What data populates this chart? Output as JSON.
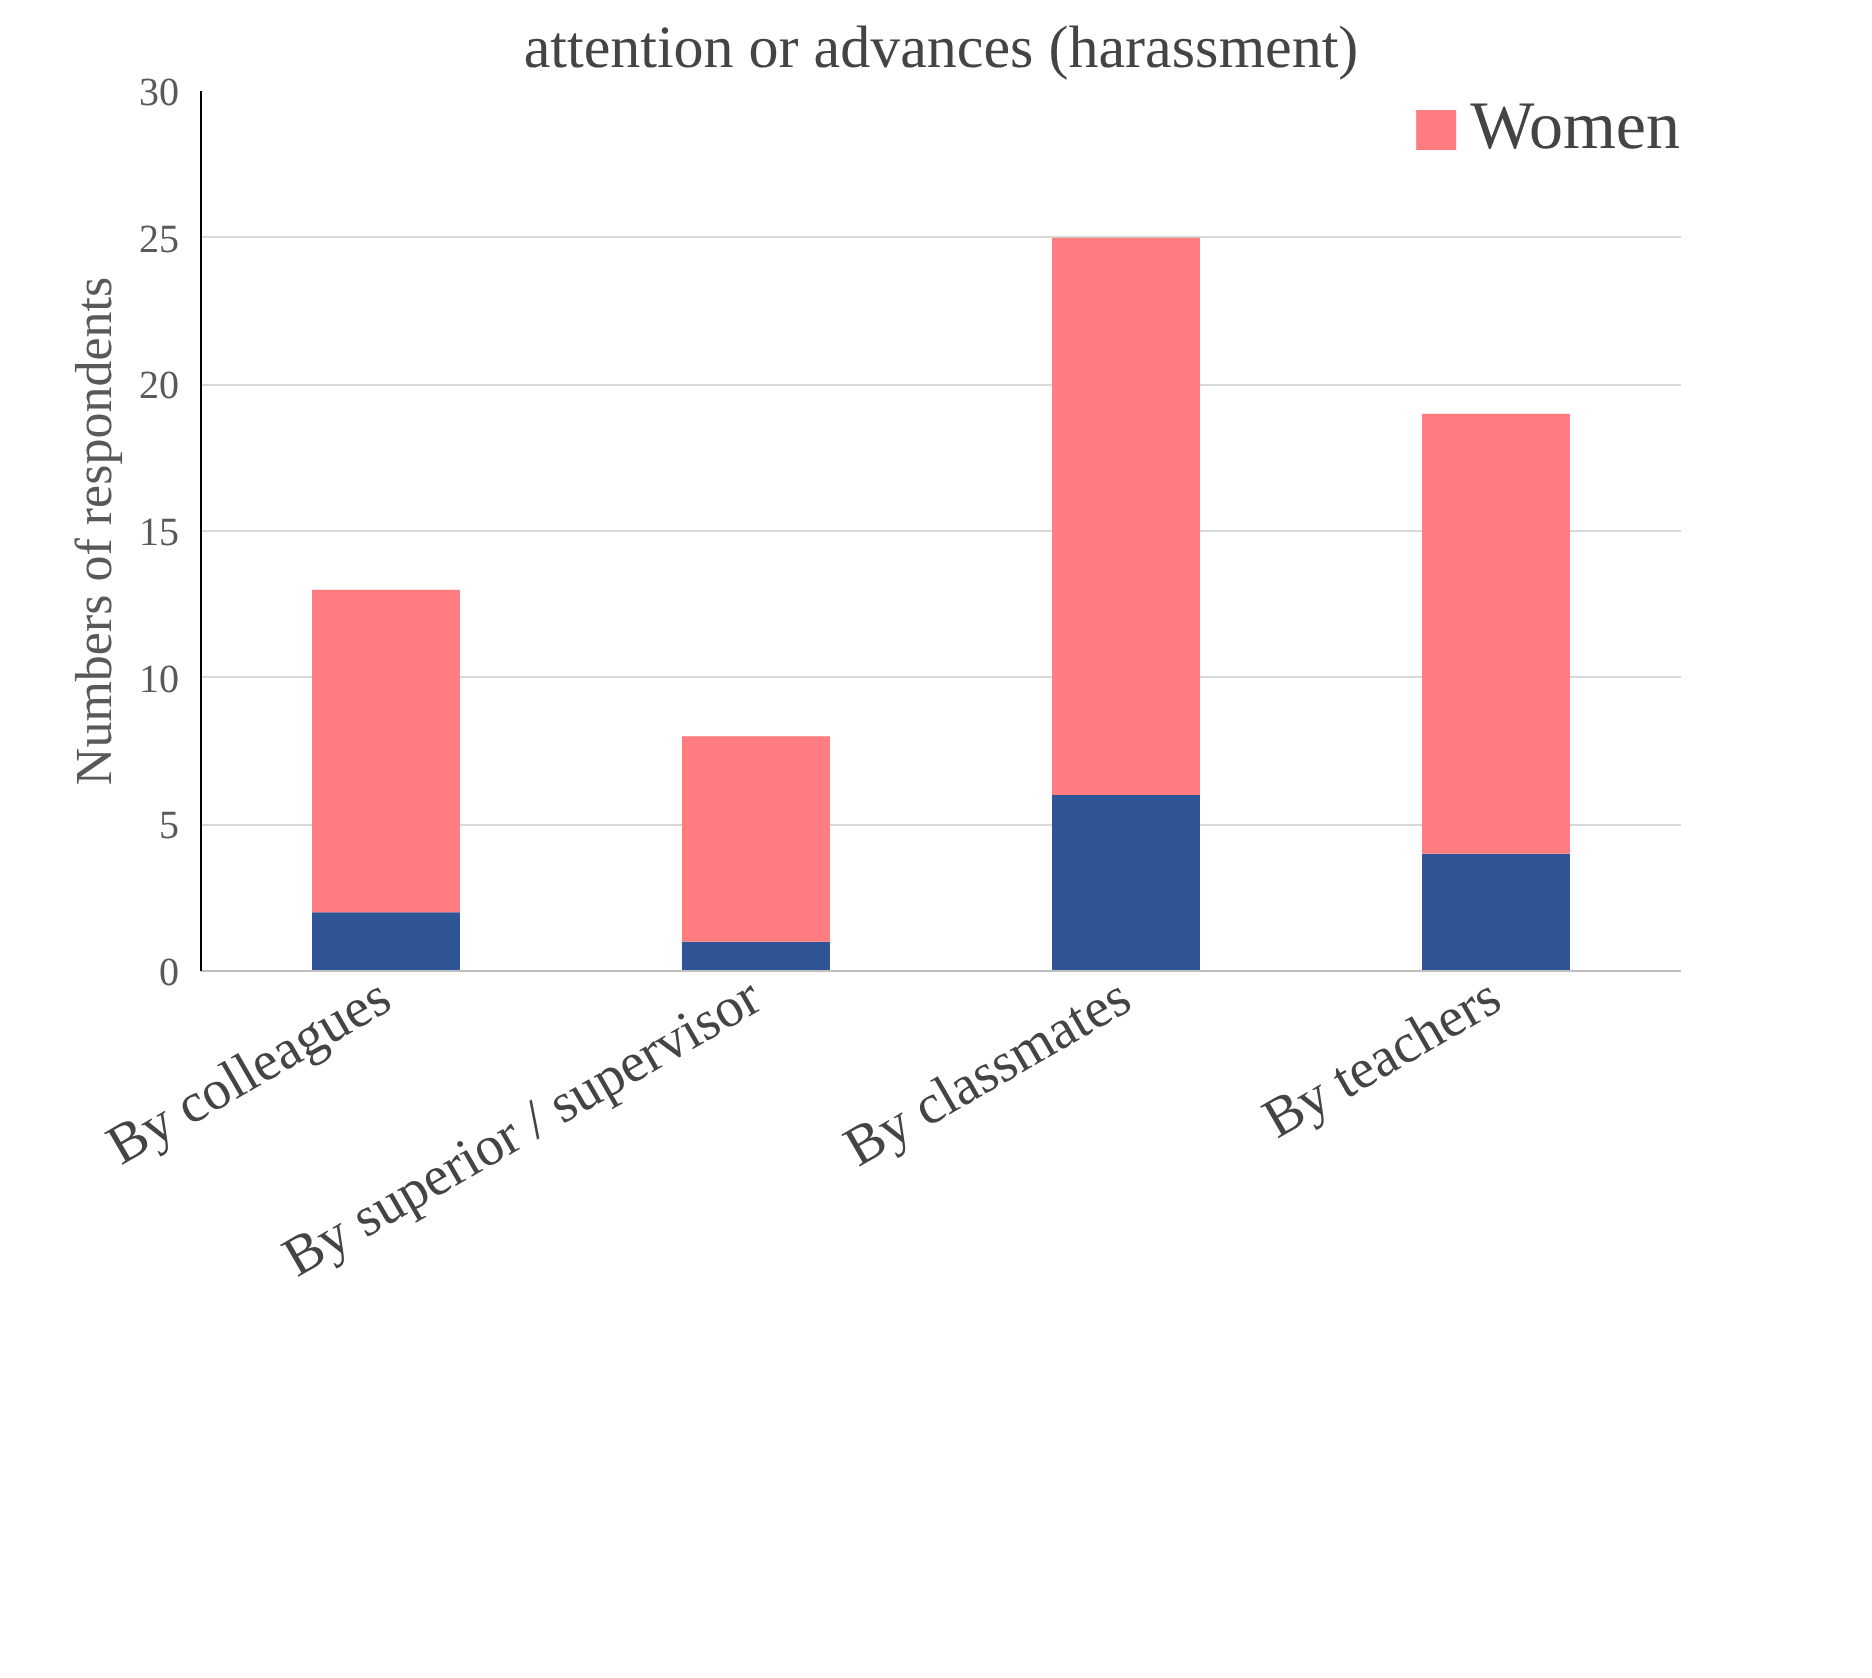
{
  "chart_data": {
    "type": "bar",
    "title": "attention or advances (harassment)",
    "ylabel": "Numbers of respondents",
    "categories": [
      "By colleagues",
      "By superior / supervisor",
      "By classmates",
      "By teachers"
    ],
    "stacked": true,
    "series": [
      {
        "color": "#2f5597",
        "values": [
          2,
          1,
          6,
          4
        ]
      },
      {
        "name": "Women",
        "color": "#ff7c80",
        "values": [
          11,
          7,
          19,
          15
        ]
      }
    ],
    "ylim": [
      0,
      30
    ],
    "yticks": [
      0,
      5,
      10,
      15,
      20,
      25,
      30
    ],
    "grid": "y",
    "legend": "top right"
  }
}
